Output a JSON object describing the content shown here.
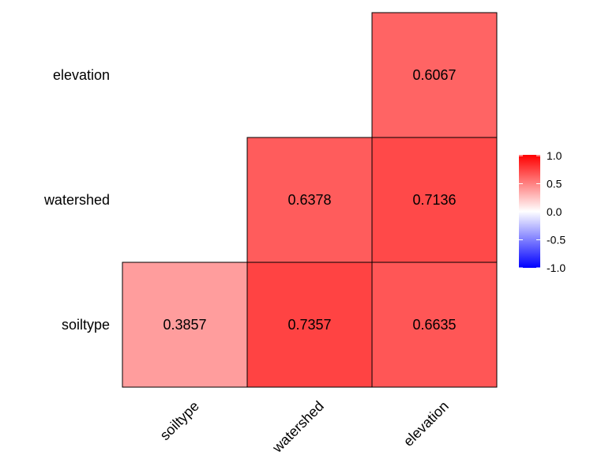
{
  "chart_data": {
    "type": "heatmap",
    "title": "",
    "xlabel": "",
    "ylabel": "",
    "x_categories": [
      "soiltype",
      "watershed",
      "elevation"
    ],
    "y_categories": [
      "soiltype",
      "watershed",
      "elevation"
    ],
    "cells": [
      {
        "x": "soiltype",
        "y": "soiltype",
        "value": 0.3857,
        "label": "0.3857"
      },
      {
        "x": "watershed",
        "y": "soiltype",
        "value": 0.7357,
        "label": "0.7357"
      },
      {
        "x": "elevation",
        "y": "soiltype",
        "value": 0.6635,
        "label": "0.6635"
      },
      {
        "x": "watershed",
        "y": "watershed",
        "value": 0.6378,
        "label": "0.6378"
      },
      {
        "x": "elevation",
        "y": "watershed",
        "value": 0.7136,
        "label": "0.7136"
      },
      {
        "x": "elevation",
        "y": "elevation",
        "value": 0.6067,
        "label": "0.6067"
      }
    ],
    "color_scale": {
      "low": "#0000ff",
      "mid": "#ffffff",
      "high": "#ff0000",
      "range": [
        -1,
        1
      ],
      "ticks": [
        1.0,
        0.5,
        0.0,
        -0.5,
        -1.0
      ],
      "tick_labels": [
        "1.0",
        "0.5",
        "0.0",
        "-0.5",
        "-1.0"
      ]
    },
    "legend_position": "right",
    "grid": false
  }
}
